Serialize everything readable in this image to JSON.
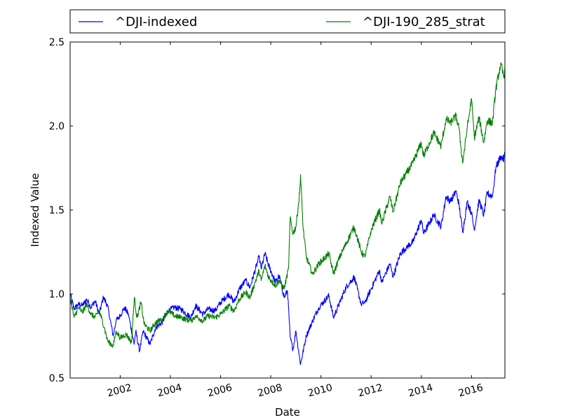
{
  "chart_data": {
    "type": "line",
    "title": "",
    "xlabel": "Date",
    "ylabel": "Indexed Value",
    "xlim": [
      "2000-01-03",
      "2017-05-01"
    ],
    "ylim": [
      0.5,
      2.5
    ],
    "x_ticks": [
      "2002",
      "2004",
      "2006",
      "2008",
      "2010",
      "2012",
      "2014",
      "2016"
    ],
    "y_ticks": [
      "0.5",
      "1.0",
      "1.5",
      "2.0",
      "2.5"
    ],
    "grid": false,
    "legend_placement": "top, outside plot, two columns",
    "series": [
      {
        "name": "^DJI-indexed",
        "color": "#0000ff",
        "points": [
          [
            "2000-01-03",
            1.0
          ],
          [
            "2000-03-01",
            0.91
          ],
          [
            "2000-05-01",
            0.94
          ],
          [
            "2000-07-01",
            0.93
          ],
          [
            "2000-09-01",
            0.97
          ],
          [
            "2000-11-01",
            0.92
          ],
          [
            "2001-01-01",
            0.96
          ],
          [
            "2001-03-01",
            0.88
          ],
          [
            "2001-05-01",
            0.98
          ],
          [
            "2001-07-01",
            0.93
          ],
          [
            "2001-09-21",
            0.75
          ],
          [
            "2001-11-01",
            0.84
          ],
          [
            "2002-01-01",
            0.87
          ],
          [
            "2002-03-01",
            0.92
          ],
          [
            "2002-05-01",
            0.88
          ],
          [
            "2002-07-23",
            0.7
          ],
          [
            "2002-08-15",
            0.78
          ],
          [
            "2002-10-09",
            0.66
          ],
          [
            "2002-12-01",
            0.78
          ],
          [
            "2003-03-11",
            0.7
          ],
          [
            "2003-06-01",
            0.8
          ],
          [
            "2003-09-01",
            0.83
          ],
          [
            "2003-12-01",
            0.9
          ],
          [
            "2004-03-01",
            0.92
          ],
          [
            "2004-06-01",
            0.91
          ],
          [
            "2004-10-25",
            0.86
          ],
          [
            "2005-01-01",
            0.93
          ],
          [
            "2005-04-20",
            0.88
          ],
          [
            "2005-07-01",
            0.91
          ],
          [
            "2005-10-15",
            0.9
          ],
          [
            "2006-01-01",
            0.95
          ],
          [
            "2006-05-01",
            1.0
          ],
          [
            "2006-07-15",
            0.95
          ],
          [
            "2006-10-01",
            1.03
          ],
          [
            "2007-01-01",
            1.08
          ],
          [
            "2007-03-05",
            1.04
          ],
          [
            "2007-07-15",
            1.22
          ],
          [
            "2007-08-15",
            1.15
          ],
          [
            "2007-10-09",
            1.24
          ],
          [
            "2007-12-01",
            1.17
          ],
          [
            "2008-03-10",
            1.07
          ],
          [
            "2008-05-01",
            1.11
          ],
          [
            "2008-07-15",
            0.98
          ],
          [
            "2008-09-01",
            1.02
          ],
          [
            "2008-10-10",
            0.74
          ],
          [
            "2008-11-20",
            0.67
          ],
          [
            "2009-01-01",
            0.78
          ],
          [
            "2009-03-09",
            0.58
          ],
          [
            "2009-06-01",
            0.75
          ],
          [
            "2009-09-01",
            0.84
          ],
          [
            "2009-12-01",
            0.92
          ],
          [
            "2010-04-26",
            0.99
          ],
          [
            "2010-07-02",
            0.86
          ],
          [
            "2010-10-01",
            0.95
          ],
          [
            "2011-01-01",
            1.04
          ],
          [
            "2011-04-29",
            1.1
          ],
          [
            "2011-08-10",
            0.94
          ],
          [
            "2011-10-03",
            0.95
          ],
          [
            "2012-01-01",
            1.03
          ],
          [
            "2012-05-01",
            1.14
          ],
          [
            "2012-06-04",
            1.07
          ],
          [
            "2012-10-01",
            1.18
          ],
          [
            "2012-11-15",
            1.1
          ],
          [
            "2013-03-01",
            1.24
          ],
          [
            "2013-06-01",
            1.28
          ],
          [
            "2013-09-01",
            1.31
          ],
          [
            "2013-12-31",
            1.44
          ],
          [
            "2014-02-03",
            1.36
          ],
          [
            "2014-07-01",
            1.47
          ],
          [
            "2014-10-15",
            1.4
          ],
          [
            "2014-12-26",
            1.58
          ],
          [
            "2015-03-01",
            1.55
          ],
          [
            "2015-05-19",
            1.61
          ],
          [
            "2015-07-01",
            1.54
          ],
          [
            "2015-08-25",
            1.37
          ],
          [
            "2015-11-01",
            1.55
          ],
          [
            "2016-01-01",
            1.48
          ],
          [
            "2016-02-11",
            1.38
          ],
          [
            "2016-04-20",
            1.56
          ],
          [
            "2016-06-27",
            1.47
          ],
          [
            "2016-08-15",
            1.6
          ],
          [
            "2016-11-01",
            1.58
          ],
          [
            "2016-12-20",
            1.75
          ],
          [
            "2017-03-01",
            1.82
          ],
          [
            "2017-04-15",
            1.8
          ],
          [
            "2017-05-01",
            1.84
          ]
        ]
      },
      {
        "name": "^DJI-190_285_strat",
        "color": "#008000",
        "points": [
          [
            "2000-01-03",
            0.98
          ],
          [
            "2000-03-01",
            0.86
          ],
          [
            "2000-05-01",
            0.92
          ],
          [
            "2000-07-01",
            0.89
          ],
          [
            "2000-09-01",
            0.94
          ],
          [
            "2000-11-01",
            0.88
          ],
          [
            "2001-01-01",
            0.86
          ],
          [
            "2001-03-01",
            0.9
          ],
          [
            "2001-05-15",
            0.8
          ],
          [
            "2001-07-01",
            0.72
          ],
          [
            "2001-09-21",
            0.69
          ],
          [
            "2001-11-01",
            0.78
          ],
          [
            "2002-01-01",
            0.74
          ],
          [
            "2002-04-01",
            0.76
          ],
          [
            "2002-06-15",
            0.71
          ],
          [
            "2002-07-25",
            0.98
          ],
          [
            "2002-09-01",
            0.86
          ],
          [
            "2002-11-01",
            0.95
          ],
          [
            "2002-12-15",
            0.82
          ],
          [
            "2003-03-11",
            0.78
          ],
          [
            "2003-06-01",
            0.83
          ],
          [
            "2003-09-01",
            0.85
          ],
          [
            "2003-12-01",
            0.9
          ],
          [
            "2004-03-01",
            0.87
          ],
          [
            "2004-06-01",
            0.86
          ],
          [
            "2004-10-25",
            0.84
          ],
          [
            "2005-01-01",
            0.87
          ],
          [
            "2005-04-20",
            0.84
          ],
          [
            "2005-07-01",
            0.87
          ],
          [
            "2005-10-15",
            0.86
          ],
          [
            "2006-01-01",
            0.88
          ],
          [
            "2006-05-01",
            0.93
          ],
          [
            "2006-07-15",
            0.9
          ],
          [
            "2006-10-01",
            0.97
          ],
          [
            "2007-01-01",
            1.01
          ],
          [
            "2007-03-05",
            0.98
          ],
          [
            "2007-07-15",
            1.14
          ],
          [
            "2007-08-15",
            1.08
          ],
          [
            "2007-10-09",
            1.17
          ],
          [
            "2007-12-01",
            1.1
          ],
          [
            "2008-03-10",
            1.05
          ],
          [
            "2008-05-01",
            1.08
          ],
          [
            "2008-07-15",
            1.03
          ],
          [
            "2008-09-15",
            1.15
          ],
          [
            "2008-10-10",
            1.45
          ],
          [
            "2008-11-20",
            1.36
          ],
          [
            "2009-01-01",
            1.4
          ],
          [
            "2009-02-25",
            1.6
          ],
          [
            "2009-03-09",
            1.71
          ],
          [
            "2009-04-15",
            1.4
          ],
          [
            "2009-06-01",
            1.22
          ],
          [
            "2009-09-01",
            1.12
          ],
          [
            "2009-12-01",
            1.18
          ],
          [
            "2010-04-26",
            1.24
          ],
          [
            "2010-07-02",
            1.12
          ],
          [
            "2010-10-01",
            1.22
          ],
          [
            "2011-01-01",
            1.3
          ],
          [
            "2011-04-29",
            1.4
          ],
          [
            "2011-08-10",
            1.25
          ],
          [
            "2011-10-03",
            1.22
          ],
          [
            "2012-01-01",
            1.38
          ],
          [
            "2012-05-01",
            1.5
          ],
          [
            "2012-06-04",
            1.42
          ],
          [
            "2012-10-01",
            1.58
          ],
          [
            "2012-11-15",
            1.49
          ],
          [
            "2013-03-01",
            1.66
          ],
          [
            "2013-06-01",
            1.72
          ],
          [
            "2013-09-01",
            1.78
          ],
          [
            "2013-12-31",
            1.9
          ],
          [
            "2014-02-03",
            1.82
          ],
          [
            "2014-07-01",
            1.96
          ],
          [
            "2014-10-15",
            1.88
          ],
          [
            "2014-12-26",
            2.04
          ],
          [
            "2015-03-01",
            2.02
          ],
          [
            "2015-05-19",
            2.06
          ],
          [
            "2015-07-01",
            1.99
          ],
          [
            "2015-08-25",
            1.78
          ],
          [
            "2015-11-01",
            1.99
          ],
          [
            "2016-01-01",
            2.16
          ],
          [
            "2016-02-11",
            1.93
          ],
          [
            "2016-04-20",
            2.05
          ],
          [
            "2016-06-27",
            1.9
          ],
          [
            "2016-08-15",
            2.03
          ],
          [
            "2016-11-01",
            2.02
          ],
          [
            "2016-12-20",
            2.22
          ],
          [
            "2017-03-01",
            2.37
          ],
          [
            "2017-04-15",
            2.29
          ],
          [
            "2017-05-01",
            2.35
          ]
        ]
      }
    ]
  }
}
